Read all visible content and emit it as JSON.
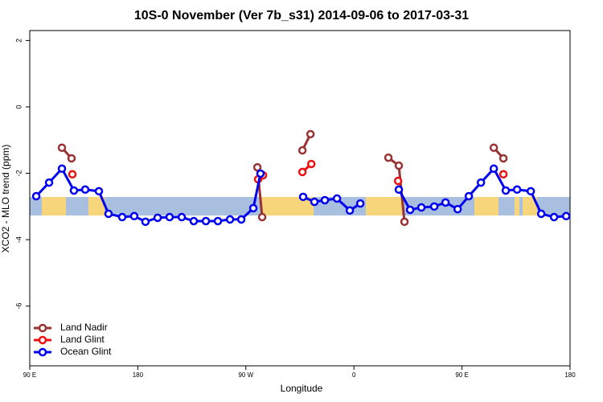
{
  "chart_data": {
    "type": "line",
    "title": "10S-0 November (Ver 7b_s31)   2014-09-06 to 2017-03-31",
    "x_label": "Longitude",
    "y_label": "XCO2 - MLO trend (ppm)",
    "xlim": [
      90,
      540
    ],
    "xticks": [
      {
        "value": 90,
        "label": "90 E"
      },
      {
        "value": 180,
        "label": "180"
      },
      {
        "value": 270,
        "label": "90 W"
      },
      {
        "value": 360,
        "label": "0"
      },
      {
        "value": 450,
        "label": "90 E"
      },
      {
        "value": 540,
        "label": "180"
      }
    ],
    "ylim": [
      -7.8,
      2.3
    ],
    "yticks": [
      2,
      0,
      -2,
      -4,
      -6
    ],
    "legend": "bottom-left",
    "series": [
      {
        "name": "Land Nadir",
        "color": "#993333",
        "x": [
          116.8,
          124.8,
          null,
          279.6,
          283.6,
          null,
          317.1,
          323.8,
          null,
          388.7,
          397.4,
          402.1,
          null,
          476.5,
          484.5
        ],
        "values": [
          -1.23,
          -1.55,
          null,
          -1.82,
          -3.32,
          null,
          -1.31,
          -0.82,
          null,
          -1.53,
          -1.77,
          -3.46,
          null,
          -1.23,
          -1.55
        ]
      },
      {
        "name": "Land Glint",
        "color": "#ee1111",
        "x": [
          125.5,
          null,
          280.2,
          284.3,
          null,
          317.1,
          324.5,
          null,
          396.8,
          null,
          484.5
        ],
        "values": [
          -2.03,
          null,
          -2.18,
          -2.06,
          null,
          -1.96,
          -1.72,
          null,
          -2.23,
          null,
          -2.03
        ]
      },
      {
        "name": "Ocean Glint",
        "color": "#0000ee",
        "x": [
          95.4,
          106.1,
          116.8,
          126.8,
          136.2,
          147.6,
          155.6,
          167,
          177,
          186.4,
          196.5,
          206.5,
          216.6,
          226.6,
          236.7,
          246.7,
          256.8,
          266.2,
          276.2,
          282.2,
          null,
          317.7,
          327.1,
          335.8,
          345.9,
          356.6,
          365.3,
          null,
          397.4,
          406.8,
          416.2,
          426.9,
          436.3,
          446.4,
          455.7,
          465.8,
          476.5,
          486.5,
          495.9,
          507.3,
          516,
          526.7,
          536.8
        ],
        "values": [
          -2.69,
          -2.28,
          -1.86,
          -2.52,
          -2.49,
          -2.54,
          -3.22,
          -3.32,
          -3.29,
          -3.46,
          -3.34,
          -3.32,
          -3.32,
          -3.44,
          -3.44,
          -3.44,
          -3.39,
          -3.39,
          -3.05,
          -2.01,
          null,
          -2.71,
          -2.86,
          -2.81,
          -2.76,
          -3.12,
          -2.91,
          null,
          -2.49,
          -3.1,
          -3.03,
          -3.0,
          -2.88,
          -3.08,
          -2.69,
          -2.28,
          -1.86,
          -2.52,
          -2.49,
          -2.54,
          -3.22,
          -3.32,
          -3.29
        ]
      }
    ]
  }
}
